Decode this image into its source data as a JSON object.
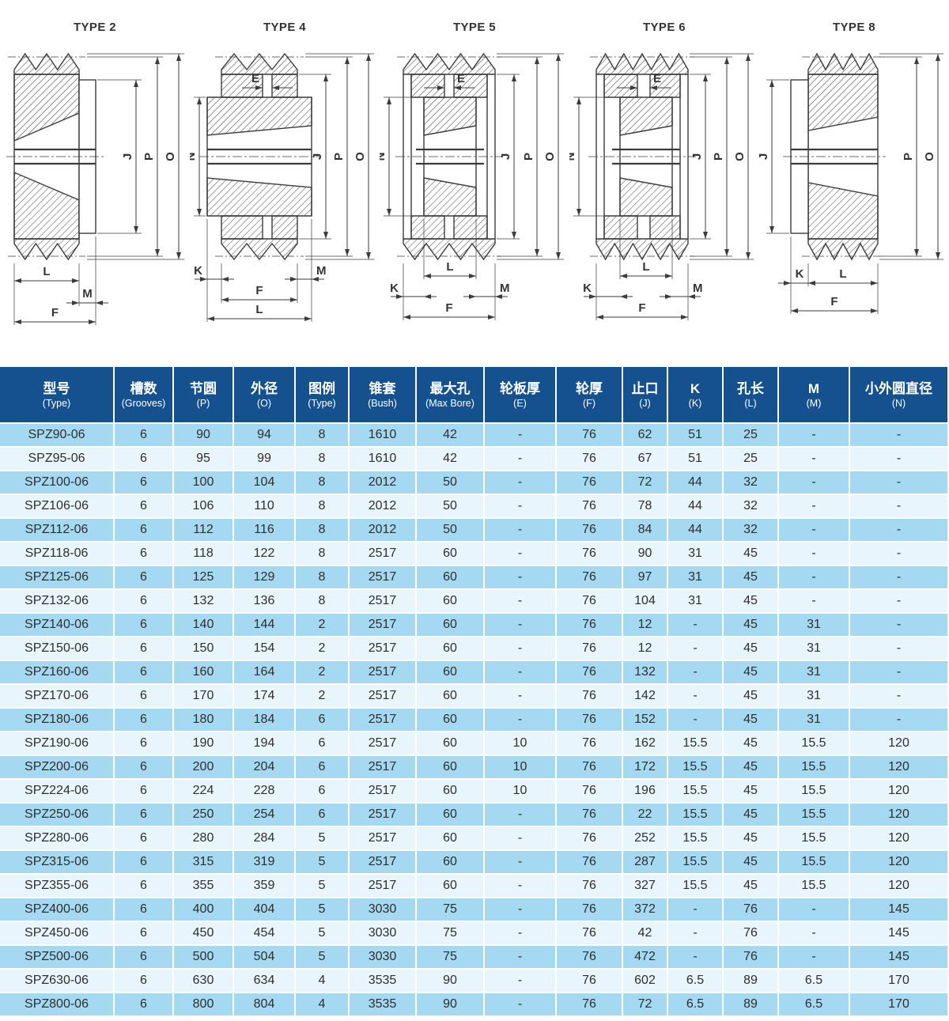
{
  "colors": {
    "header_bg": "#15518f",
    "row_alt": "#a4d9f1",
    "row_base": "#e8f5fc",
    "line": "#3c3c3c",
    "text": "#2e2e2e"
  },
  "drawings": [
    {
      "title": "TYPE 2",
      "type": 2,
      "dims": {
        "j": "J",
        "p": "P",
        "o": "O",
        "l": "L",
        "m": "M",
        "f": "F"
      }
    },
    {
      "title": "TYPE 4",
      "type": 4,
      "dims": {
        "e": "E",
        "n": "N",
        "j": "J",
        "p": "P",
        "o": "O",
        "k": "K",
        "m": "M",
        "f": "F",
        "l": "L"
      }
    },
    {
      "title": "TYPE 5",
      "type": 5,
      "dims": {
        "e": "E",
        "n": "N",
        "j": "J",
        "p": "P",
        "o": "O",
        "l": "L",
        "k": "K",
        "m": "M",
        "f": "F"
      }
    },
    {
      "title": "TYPE 6",
      "type": 6,
      "dims": {
        "e": "E",
        "n": "N",
        "j": "J",
        "p": "P",
        "o": "O",
        "l": "L",
        "k": "K",
        "m": "M",
        "f": "F"
      }
    },
    {
      "title": "TYPE 8",
      "type": 8,
      "dims": {
        "j": "J",
        "p": "P",
        "o": "O",
        "k": "K",
        "l": "L",
        "f": "F"
      }
    }
  ],
  "table": {
    "columns": [
      {
        "cn": "型号",
        "en": "(Type)"
      },
      {
        "cn": "槽数",
        "en": "(Grooves)"
      },
      {
        "cn": "节圆",
        "en": "(P)"
      },
      {
        "cn": "外径",
        "en": "(O)"
      },
      {
        "cn": "图例",
        "en": "(Type)"
      },
      {
        "cn": "锥套",
        "en": "(Bush)"
      },
      {
        "cn": "最大孔",
        "en": "(Max Bore)"
      },
      {
        "cn": "轮板厚",
        "en": "(E)"
      },
      {
        "cn": "轮厚",
        "en": "(F)"
      },
      {
        "cn": "止口",
        "en": "(J)"
      },
      {
        "cn": "K",
        "en": "(K)"
      },
      {
        "cn": "孔长",
        "en": "(L)"
      },
      {
        "cn": "M",
        "en": "(M)"
      },
      {
        "cn": "小外圆直径",
        "en": "(N)"
      }
    ],
    "rows": [
      [
        "SPZ90-06",
        "6",
        "90",
        "94",
        "8",
        "1610",
        "42",
        "-",
        "76",
        "62",
        "51",
        "25",
        "-",
        "-"
      ],
      [
        "SPZ95-06",
        "6",
        "95",
        "99",
        "8",
        "1610",
        "42",
        "-",
        "76",
        "67",
        "51",
        "25",
        "-",
        "-"
      ],
      [
        "SPZ100-06",
        "6",
        "100",
        "104",
        "8",
        "2012",
        "50",
        "-",
        "76",
        "72",
        "44",
        "32",
        "-",
        "-"
      ],
      [
        "SPZ106-06",
        "6",
        "106",
        "110",
        "8",
        "2012",
        "50",
        "-",
        "76",
        "78",
        "44",
        "32",
        "-",
        "-"
      ],
      [
        "SPZ112-06",
        "6",
        "112",
        "116",
        "8",
        "2012",
        "50",
        "-",
        "76",
        "84",
        "44",
        "32",
        "-",
        "-"
      ],
      [
        "SPZ118-06",
        "6",
        "118",
        "122",
        "8",
        "2517",
        "60",
        "-",
        "76",
        "90",
        "31",
        "45",
        "-",
        "-"
      ],
      [
        "SPZ125-06",
        "6",
        "125",
        "129",
        "8",
        "2517",
        "60",
        "-",
        "76",
        "97",
        "31",
        "45",
        "-",
        "-"
      ],
      [
        "SPZ132-06",
        "6",
        "132",
        "136",
        "8",
        "2517",
        "60",
        "-",
        "76",
        "104",
        "31",
        "45",
        "-",
        "-"
      ],
      [
        "SPZ140-06",
        "6",
        "140",
        "144",
        "2",
        "2517",
        "60",
        "-",
        "76",
        "12",
        "-",
        "45",
        "31",
        "-"
      ],
      [
        "SPZ150-06",
        "6",
        "150",
        "154",
        "2",
        "2517",
        "60",
        "-",
        "76",
        "12",
        "-",
        "45",
        "31",
        "-"
      ],
      [
        "SPZ160-06",
        "6",
        "160",
        "164",
        "2",
        "2517",
        "60",
        "-",
        "76",
        "132",
        "-",
        "45",
        "31",
        "-"
      ],
      [
        "SPZ170-06",
        "6",
        "170",
        "174",
        "2",
        "2517",
        "60",
        "-",
        "76",
        "142",
        "-",
        "45",
        "31",
        "-"
      ],
      [
        "SPZ180-06",
        "6",
        "180",
        "184",
        "6",
        "2517",
        "60",
        "-",
        "76",
        "152",
        "-",
        "45",
        "31",
        "-"
      ],
      [
        "SPZ190-06",
        "6",
        "190",
        "194",
        "6",
        "2517",
        "60",
        "10",
        "76",
        "162",
        "15.5",
        "45",
        "15.5",
        "120"
      ],
      [
        "SPZ200-06",
        "6",
        "200",
        "204",
        "6",
        "2517",
        "60",
        "10",
        "76",
        "172",
        "15.5",
        "45",
        "15.5",
        "120"
      ],
      [
        "SPZ224-06",
        "6",
        "224",
        "228",
        "6",
        "2517",
        "60",
        "10",
        "76",
        "196",
        "15.5",
        "45",
        "15.5",
        "120"
      ],
      [
        "SPZ250-06",
        "6",
        "250",
        "254",
        "6",
        "2517",
        "60",
        "-",
        "76",
        "22",
        "15.5",
        "45",
        "15.5",
        "120"
      ],
      [
        "SPZ280-06",
        "6",
        "280",
        "284",
        "5",
        "2517",
        "60",
        "-",
        "76",
        "252",
        "15.5",
        "45",
        "15.5",
        "120"
      ],
      [
        "SPZ315-06",
        "6",
        "315",
        "319",
        "5",
        "2517",
        "60",
        "-",
        "76",
        "287",
        "15.5",
        "45",
        "15.5",
        "120"
      ],
      [
        "SPZ355-06",
        "6",
        "355",
        "359",
        "5",
        "2517",
        "60",
        "-",
        "76",
        "327",
        "15.5",
        "45",
        "15.5",
        "120"
      ],
      [
        "SPZ400-06",
        "6",
        "400",
        "404",
        "5",
        "3030",
        "75",
        "-",
        "76",
        "372",
        "-",
        "76",
        "-",
        "145"
      ],
      [
        "SPZ450-06",
        "6",
        "450",
        "454",
        "5",
        "3030",
        "75",
        "-",
        "76",
        "42",
        "-",
        "76",
        "-",
        "145"
      ],
      [
        "SPZ500-06",
        "6",
        "500",
        "504",
        "5",
        "3030",
        "75",
        "-",
        "76",
        "472",
        "-",
        "76",
        "-",
        "145"
      ],
      [
        "SPZ630-06",
        "6",
        "630",
        "634",
        "4",
        "3535",
        "90",
        "-",
        "76",
        "602",
        "6.5",
        "89",
        "6.5",
        "170"
      ],
      [
        "SPZ800-06",
        "6",
        "800",
        "804",
        "4",
        "3535",
        "90",
        "-",
        "76",
        "72",
        "6.5",
        "89",
        "6.5",
        "170"
      ]
    ]
  }
}
